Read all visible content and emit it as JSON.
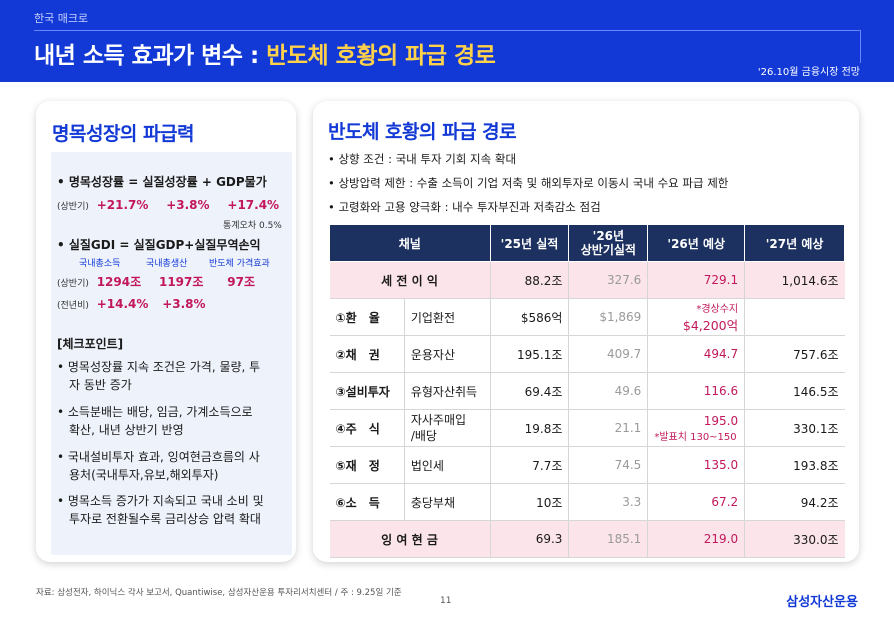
{
  "header": {
    "category": "한국 매크로",
    "title_main": "내년 소득 효과가 변수 : ",
    "title_highlight": "반도체 호황의 파급 경로",
    "date_tag": "'26.10월 금융시장 전망"
  },
  "left": {
    "title": "명목성장의 파급력",
    "formula1": "• 명목성장률 = 실질성장률 + GDP물가",
    "row1_label": "(상반기)",
    "row1_v1": "+21.7%",
    "row1_v2": "+3.8%",
    "row1_v3": "+17.4%",
    "row1_note": "통계오차 0.5%",
    "formula2": "• 실질GDI = 실질GDP+실질무역손익",
    "sub1": "국내총소득",
    "sub2": "국내총생산",
    "sub3": "반도체 가격효과",
    "row2_label": "(상반기)",
    "row2_v1": "1294조",
    "row2_v2": "1197조",
    "row2_v3": "97조",
    "row3_label": "(전년비)",
    "row3_v1": "+14.4%",
    "row3_v2": "+3.8%",
    "checkpoint_title": "[체크포인트]",
    "cp1_l1": "• 명목성장률 지속 조건은 가격, 물량, 투",
    "cp1_l2": "자 동반 증가",
    "cp2_l1": "• 소득분배는 배당, 임금, 가계소득으로",
    "cp2_l2": "확산, 내년 상반기 반영",
    "cp3_l1": "• 국내설비투자 효과, 잉여현금흐름의 사",
    "cp3_l2": "용처(국내투자,유보,해외투자)",
    "cp4_l1": "• 명목소득 증가가 지속되고 국내 소비 및",
    "cp4_l2": "투자로 전환될수록 금리상승 압력 확대"
  },
  "right": {
    "title": "반도체 호황의 파급 경로",
    "b1": "• 상향 조건 : 국내 투자 기회 지속 확대",
    "b2": "• 상방압력 제한 : 수출 소득이 기업 저축 및 해외투자로 이동시 국내 수요 파급 제한",
    "b3": "• 고령화와 고용 양극화 : 내수 투자부진과 저축감소 점검",
    "table": {
      "h_channel": "채널",
      "h_25": "'25년 실적",
      "h_26h1_l1": "'26년",
      "h_26h1_l2": "상반기실적",
      "h_26f": "'26년 예상",
      "h_27f": "'27년 예상",
      "tax": {
        "label": "세 전 이 익",
        "a": "88.2조",
        "b": "327.6",
        "c": "729.1",
        "d": "1,014.6조"
      },
      "r1": {
        "name": "①환　율",
        "item": "기업환전",
        "a": "$586억",
        "b": "$1,869",
        "c_note": "*경상수지",
        "c": "$4,200억",
        "d": ""
      },
      "r2": {
        "name": "②채　권",
        "item": "운용자산",
        "a": "195.1조",
        "b": "409.7",
        "c": "494.7",
        "d": "757.6조"
      },
      "r3": {
        "name": "③설비투자",
        "item": "유형자산취득",
        "a": "69.4조",
        "b": "49.6",
        "c": "116.6",
        "d": "146.5조"
      },
      "r4": {
        "name": "④주　식",
        "item_l1": "자사주매입",
        "item_l2": "/배당",
        "a": "19.8조",
        "b": "21.1",
        "c": "195.0",
        "c_note": "*발표치 130~150",
        "d": "330.1조"
      },
      "r5": {
        "name": "⑤재　정",
        "item": "법인세",
        "a": "7.7조",
        "b": "74.5",
        "c": "135.0",
        "d": "193.8조"
      },
      "r6": {
        "name": "⑥소　득",
        "item": "충당부채",
        "a": "10조",
        "b": "3.3",
        "c": "67.2",
        "d": "94.2조"
      },
      "fcf": {
        "label": "잉 여 현 금",
        "a": "69.3",
        "b": "185.1",
        "c": "219.0",
        "d": "330.0조"
      }
    }
  },
  "footer": {
    "source": "자료: 삼성전자, 하이닉스 각사 보고서, Quantiwise, 삼성자산운용 투자리서치센터 / 주 : 9.25일 기준",
    "page": "11",
    "logo": "삼성자산운용"
  }
}
